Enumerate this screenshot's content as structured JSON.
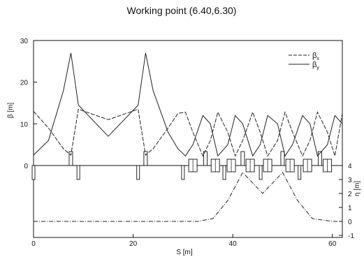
{
  "chart_data": {
    "type": "line",
    "title": "Working point (6.40,6.30)",
    "xlabel": "S [m]",
    "ylabel_left": "β [m]",
    "ylabel_right": "η [m]",
    "xlim": [
      0,
      62
    ],
    "ylim_beta": [
      0,
      30
    ],
    "ylim_eta": [
      -1,
      4
    ],
    "x_ticks": [
      0,
      20,
      40,
      60
    ],
    "beta_ticks": [
      0,
      10,
      20,
      30
    ],
    "eta_ticks": [
      -1,
      0,
      1,
      2,
      3,
      4
    ],
    "grid": false,
    "legend_position": "top-right",
    "legend": [
      {
        "symbol": "β",
        "sub": "x"
      },
      {
        "symbol": "β",
        "sub": "y"
      }
    ],
    "series": [
      {
        "key": "beta_x",
        "axis": "beta",
        "style": "dashed",
        "x": [
          0,
          3,
          6,
          7.5,
          9,
          15,
          21,
          22.5,
          24,
          27,
          29,
          30.5,
          32,
          34,
          35.5,
          37,
          39,
          40.5,
          42,
          44,
          45.5,
          47,
          49,
          50.5,
          52,
          54,
          55.5,
          57,
          59,
          60.5,
          62
        ],
        "y": [
          13,
          9,
          4,
          2.5,
          13.5,
          11,
          13.5,
          2.5,
          4,
          9,
          12.5,
          12.8,
          8,
          2.3,
          6,
          12.8,
          8,
          2.3,
          6,
          12.8,
          8,
          2.3,
          6,
          12.8,
          8,
          2.3,
          6,
          12.8,
          8,
          2.3,
          12.5
        ]
      },
      {
        "key": "beta_y",
        "axis": "beta",
        "style": "solid",
        "x": [
          0,
          3,
          6,
          7.5,
          9,
          15,
          21,
          22.5,
          24,
          27,
          29,
          30.5,
          32,
          34,
          35.5,
          37,
          39,
          40.5,
          42,
          44,
          45.5,
          47,
          49,
          50.5,
          52,
          54,
          55.5,
          57,
          59,
          60.5,
          62
        ],
        "y": [
          2.5,
          6,
          18,
          27,
          14.5,
          7,
          14.5,
          27,
          18,
          8,
          4,
          2.3,
          5,
          12,
          10,
          2.3,
          5,
          12,
          10,
          2.3,
          5,
          12,
          10,
          2.3,
          5,
          12,
          10,
          2.3,
          5,
          12,
          10
        ]
      },
      {
        "key": "eta",
        "axis": "eta",
        "style": "dash-dot",
        "x": [
          0,
          33,
          36,
          39,
          42,
          46,
          50,
          53,
          56,
          60,
          62
        ],
        "y": [
          0,
          0,
          0.2,
          1.5,
          3.5,
          2,
          3.5,
          1.5,
          0.2,
          0,
          0
        ]
      }
    ],
    "elements": [
      {
        "s": 0,
        "type": "quad-down"
      },
      {
        "s": 7.5,
        "type": "quad-up"
      },
      {
        "s": 9,
        "type": "quad-down"
      },
      {
        "s": 21,
        "type": "quad-down"
      },
      {
        "s": 22.5,
        "type": "quad-up"
      },
      {
        "s": 30,
        "type": "quad-down"
      },
      {
        "s": 32,
        "type": "dipole"
      },
      {
        "s": 34.5,
        "type": "quad-up"
      },
      {
        "s": 36.5,
        "type": "dipole"
      },
      {
        "s": 38.3,
        "type": "quad-down"
      },
      {
        "s": 39.7,
        "type": "dipole"
      },
      {
        "s": 42,
        "type": "quad-up"
      },
      {
        "s": 43.5,
        "type": "dipole"
      },
      {
        "s": 45.6,
        "type": "quad-down"
      },
      {
        "s": 47,
        "type": "dipole"
      },
      {
        "s": 50,
        "type": "quad-up"
      },
      {
        "s": 51.5,
        "type": "dipole"
      },
      {
        "s": 53.4,
        "type": "quad-down"
      },
      {
        "s": 55,
        "type": "dipole"
      },
      {
        "s": 57.5,
        "type": "quad-up"
      },
      {
        "s": 59,
        "type": "dipole"
      }
    ]
  }
}
